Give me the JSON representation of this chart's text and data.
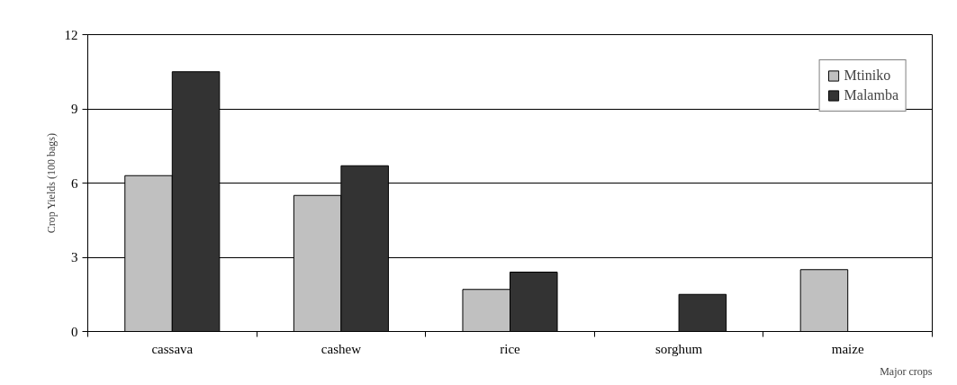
{
  "chart_data": {
    "type": "bar",
    "xlabel": "Major crops",
    "ylabel": "Crop Yields (100 bags)",
    "categories": [
      "cassava",
      "cashew",
      "rice",
      "sorghum",
      "maize"
    ],
    "series": [
      {
        "name": "Mtiniko",
        "color": "#c0c0c0",
        "values": [
          6.3,
          5.5,
          1.7,
          null,
          2.5
        ]
      },
      {
        "name": "Malamba",
        "color": "#333333",
        "values": [
          10.5,
          6.7,
          2.4,
          1.5,
          null
        ]
      }
    ],
    "ylim": [
      0,
      12
    ],
    "yticks": [
      0,
      3,
      6,
      9,
      12
    ],
    "grid": "y",
    "legend": "top right"
  }
}
